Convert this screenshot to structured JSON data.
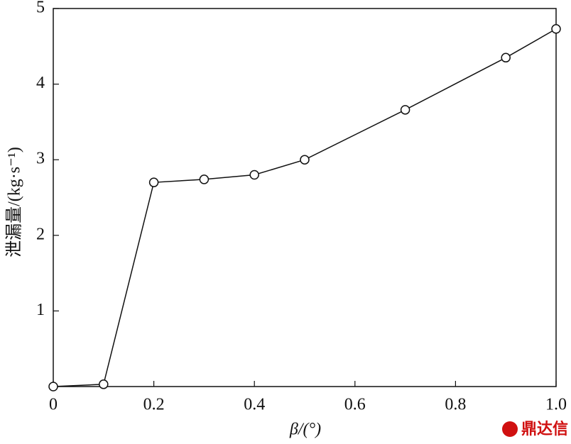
{
  "chart_data": {
    "type": "line",
    "x_label": "β/(°)",
    "y_label": "泄漏量/(kg·s⁻¹)",
    "x": [
      0,
      0.1,
      0.2,
      0.3,
      0.4,
      0.5,
      0.7,
      0.9,
      1.0
    ],
    "series": [
      {
        "color": "#111111",
        "values": [
          0,
          0.03,
          2.7,
          2.74,
          2.8,
          3.0,
          3.66,
          4.35,
          4.73
        ]
      }
    ],
    "xlim": [
      0,
      1
    ],
    "xticks": [
      0,
      0.2,
      0.4,
      0.6,
      0.8,
      {
        "value": 1,
        "label": "1.0"
      }
    ],
    "ylim": [
      0,
      5
    ],
    "yticks": [
      1,
      2,
      3,
      4,
      5
    ],
    "watermark": "鼎达信"
  }
}
